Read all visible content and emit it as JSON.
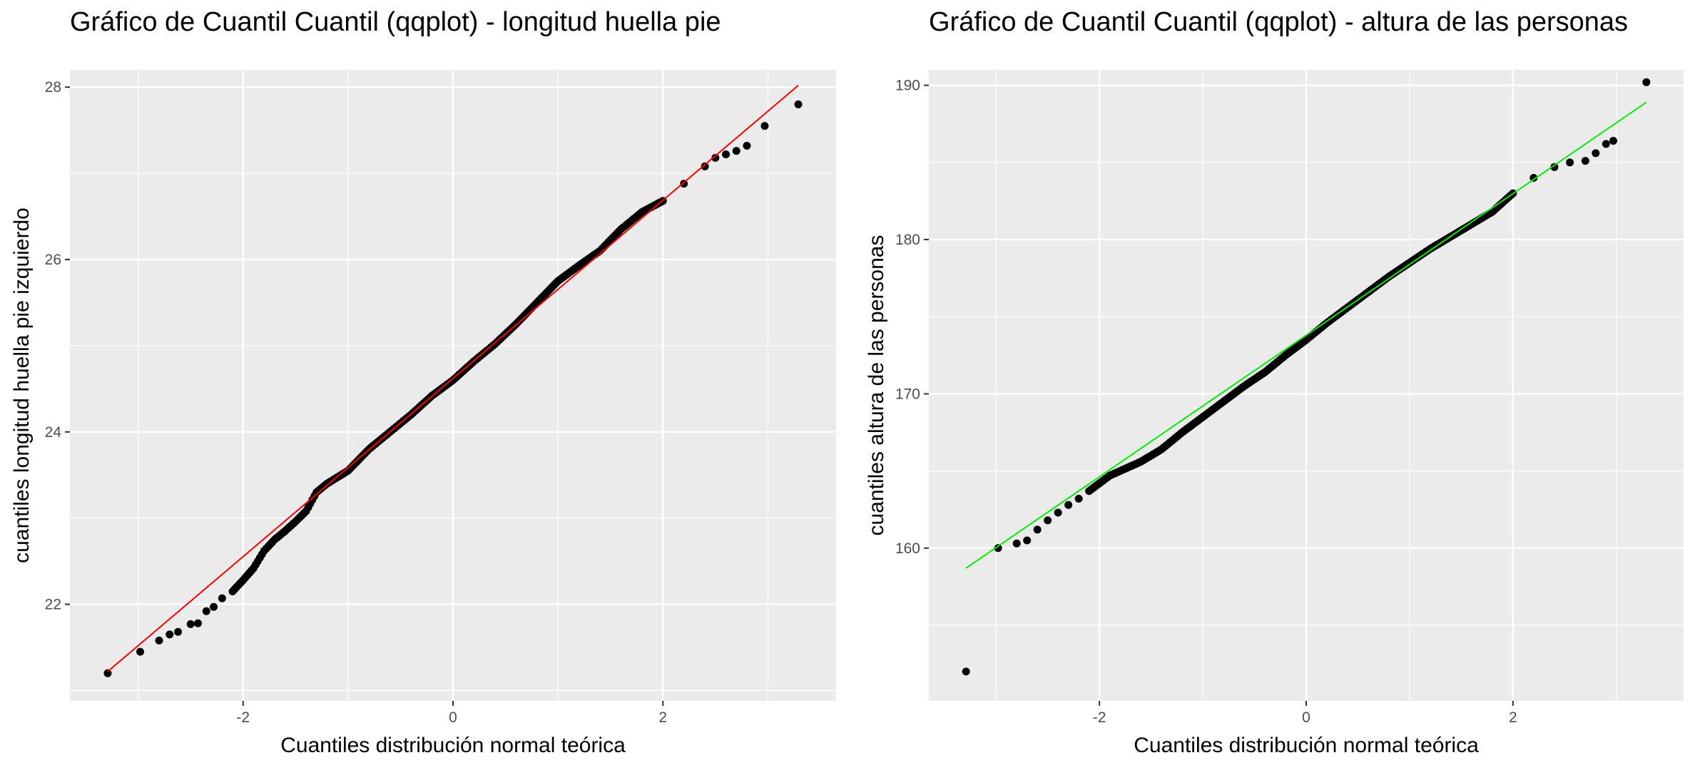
{
  "chart_data": [
    {
      "type": "scatter",
      "title": "Gráfico de Cuantil Cuantil (qqplot) - longitud huella pie",
      "xlabel": "Cuantiles distribución normal teórica",
      "ylabel": "cuantiles longitud huella pie izquierdo",
      "xlim": [
        -3.65,
        3.65
      ],
      "ylim": [
        20.88,
        28.2
      ],
      "x_ticks": [
        -2,
        0,
        2
      ],
      "x_tick_labels": [
        "-2",
        "0",
        "2"
      ],
      "y_ticks": [
        22,
        24,
        26,
        28
      ],
      "y_tick_labels": [
        "22",
        "24",
        "26",
        "28"
      ],
      "grid": true,
      "background": "#ebebeb",
      "point_color": "#000000",
      "line_color": "#ff0000",
      "reference_line": {
        "x": [
          -3.29,
          3.29
        ],
        "y": [
          21.22,
          28.02
        ]
      },
      "points": [
        [
          -3.29,
          21.2
        ],
        [
          -2.98,
          21.45
        ],
        [
          -2.8,
          21.58
        ],
        [
          -2.7,
          21.65
        ],
        [
          -2.62,
          21.68
        ],
        [
          -2.5,
          21.77
        ],
        [
          -2.43,
          21.78
        ],
        [
          -2.35,
          21.92
        ],
        [
          -2.28,
          21.97
        ],
        [
          -2.2,
          22.07
        ],
        [
          -2.1,
          22.15
        ],
        [
          -2.0,
          22.28
        ],
        [
          -1.9,
          22.42
        ],
        [
          -1.8,
          22.62
        ],
        [
          -1.7,
          22.75
        ],
        [
          -1.6,
          22.85
        ],
        [
          -1.5,
          22.96
        ],
        [
          -1.4,
          23.08
        ],
        [
          -1.3,
          23.3
        ],
        [
          -1.2,
          23.4
        ],
        [
          -1.0,
          23.55
        ],
        [
          -0.8,
          23.8
        ],
        [
          -0.6,
          24.0
        ],
        [
          -0.4,
          24.2
        ],
        [
          -0.2,
          24.42
        ],
        [
          0.0,
          24.6
        ],
        [
          0.2,
          24.82
        ],
        [
          0.4,
          25.02
        ],
        [
          0.6,
          25.25
        ],
        [
          0.8,
          25.5
        ],
        [
          1.0,
          25.75
        ],
        [
          1.2,
          25.93
        ],
        [
          1.4,
          26.1
        ],
        [
          1.6,
          26.35
        ],
        [
          1.8,
          26.55
        ],
        [
          2.0,
          26.68
        ],
        [
          2.2,
          26.88
        ],
        [
          2.4,
          27.08
        ],
        [
          2.5,
          27.18
        ],
        [
          2.6,
          27.22
        ],
        [
          2.7,
          27.26
        ],
        [
          2.8,
          27.32
        ],
        [
          2.97,
          27.55
        ],
        [
          3.29,
          27.8
        ]
      ]
    },
    {
      "type": "scatter",
      "title": "Gráfico de Cuantil Cuantil (qqplot) - altura de las personas",
      "xlabel": "Cuantiles distribución normal teórica",
      "ylabel": "cuantiles altura de las personas",
      "xlim": [
        -3.65,
        3.65
      ],
      "ylim": [
        150.1,
        191.0
      ],
      "x_ticks": [
        -2,
        0,
        2
      ],
      "x_tick_labels": [
        "-2",
        "0",
        "2"
      ],
      "y_ticks": [
        160,
        170,
        180,
        190
      ],
      "y_tick_labels": [
        "160",
        "170",
        "180",
        "190"
      ],
      "grid": true,
      "background": "#ebebeb",
      "point_color": "#000000",
      "line_color": "#00ee00",
      "reference_line": {
        "x": [
          -3.29,
          3.29
        ],
        "y": [
          158.7,
          188.9
        ]
      },
      "points": [
        [
          -3.29,
          152.0
        ],
        [
          -2.98,
          160.0
        ],
        [
          -2.8,
          160.3
        ],
        [
          -2.7,
          160.5
        ],
        [
          -2.6,
          161.2
        ],
        [
          -2.5,
          161.8
        ],
        [
          -2.4,
          162.3
        ],
        [
          -2.3,
          162.8
        ],
        [
          -2.2,
          163.2
        ],
        [
          -2.1,
          163.7
        ],
        [
          -2.0,
          164.2
        ],
        [
          -1.9,
          164.7
        ],
        [
          -1.8,
          165.0
        ],
        [
          -1.6,
          165.6
        ],
        [
          -1.4,
          166.4
        ],
        [
          -1.2,
          167.5
        ],
        [
          -1.0,
          168.5
        ],
        [
          -0.8,
          169.5
        ],
        [
          -0.6,
          170.5
        ],
        [
          -0.4,
          171.4
        ],
        [
          -0.2,
          172.5
        ],
        [
          0.0,
          173.5
        ],
        [
          0.2,
          174.6
        ],
        [
          0.4,
          175.6
        ],
        [
          0.6,
          176.6
        ],
        [
          0.8,
          177.6
        ],
        [
          1.0,
          178.5
        ],
        [
          1.2,
          179.4
        ],
        [
          1.4,
          180.2
        ],
        [
          1.6,
          181.0
        ],
        [
          1.8,
          181.8
        ],
        [
          2.0,
          183.0
        ],
        [
          2.2,
          184.0
        ],
        [
          2.4,
          184.7
        ],
        [
          2.55,
          185.0
        ],
        [
          2.7,
          185.1
        ],
        [
          2.8,
          185.6
        ],
        [
          2.9,
          186.2
        ],
        [
          2.97,
          186.4
        ],
        [
          3.29,
          190.2
        ]
      ]
    }
  ]
}
